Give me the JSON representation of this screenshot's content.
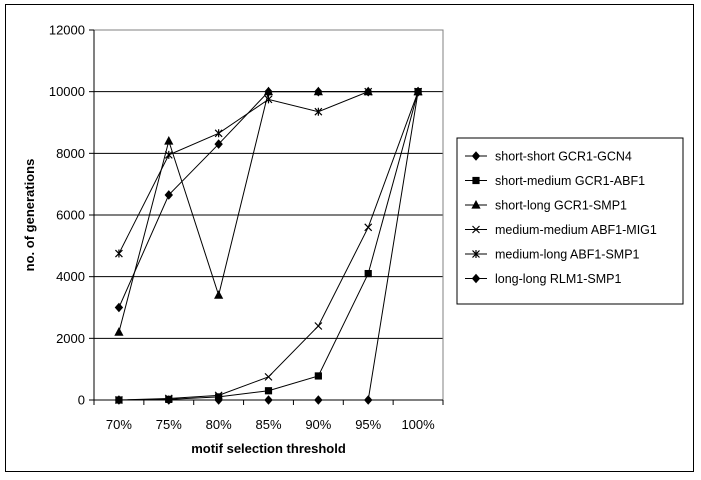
{
  "chart_data": {
    "type": "line",
    "categories": [
      "70%",
      "75%",
      "80%",
      "85%",
      "90%",
      "95%",
      "100%"
    ],
    "xlabel": "motif selection threshold",
    "ylabel": "no. of generations",
    "ylim": [
      0,
      12000
    ],
    "yticks": [
      "0",
      "2000",
      "4000",
      "6000",
      "8000",
      "10000",
      "12000"
    ],
    "grid": "horizontal",
    "legend_position": "right",
    "series": [
      {
        "name": "short-short GCR1-GCN4",
        "marker": "diamond",
        "values": [
          0,
          0,
          0,
          0,
          0,
          0,
          10000
        ]
      },
      {
        "name": "short-medium GCR1-ABF1",
        "marker": "square",
        "values": [
          0,
          20,
          100,
          300,
          780,
          4100,
          10000
        ]
      },
      {
        "name": "short-long GCR1-SMP1",
        "marker": "triangle",
        "values": [
          2200,
          8400,
          3400,
          10000,
          10000,
          10000,
          10000
        ]
      },
      {
        "name": "medium-medium ABF1-MIG1",
        "marker": "x",
        "values": [
          0,
          50,
          150,
          750,
          2400,
          5600,
          10000
        ]
      },
      {
        "name": "medium-long ABF1-SMP1",
        "marker": "star",
        "values": [
          4750,
          7950,
          8650,
          9750,
          9350,
          10000,
          10000
        ]
      },
      {
        "name": "long-long RLM1-SMP1",
        "marker": "diamond",
        "values": [
          3000,
          6650,
          8300,
          10000,
          10000,
          10000,
          10000
        ]
      }
    ]
  }
}
